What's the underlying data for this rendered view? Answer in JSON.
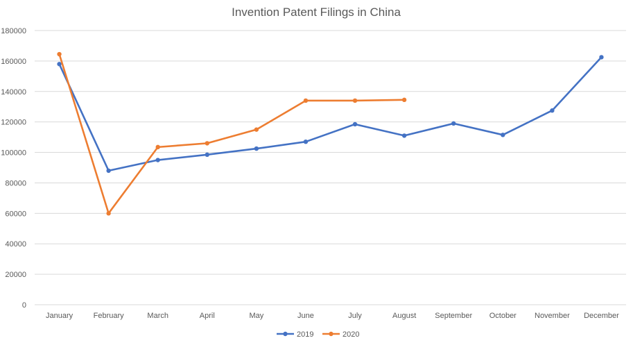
{
  "chart_data": {
    "type": "line",
    "title": "Invention Patent Filings in China",
    "xlabel": "",
    "ylabel": "",
    "categories": [
      "January",
      "February",
      "March",
      "April",
      "May",
      "June",
      "July",
      "August",
      "September",
      "October",
      "November",
      "December"
    ],
    "ylim": [
      0,
      180000
    ],
    "yticks": [
      0,
      20000,
      40000,
      60000,
      80000,
      100000,
      120000,
      140000,
      160000,
      180000
    ],
    "ytick_labels": [
      "0",
      "20000",
      "40000",
      "60000",
      "80000",
      "100000",
      "120000",
      "140000",
      "160000",
      "180000"
    ],
    "grid": true,
    "legend_position": "bottom",
    "series": [
      {
        "name": "2019",
        "color": "#4472c4",
        "values": [
          158000,
          88000,
          95000,
          98500,
          102500,
          107000,
          118500,
          111000,
          119000,
          111500,
          127500,
          162500
        ]
      },
      {
        "name": "2020",
        "color": "#ed7d31",
        "values": [
          164500,
          60000,
          103500,
          106000,
          115000,
          134000,
          134000,
          134500,
          null,
          null,
          null,
          null
        ]
      }
    ]
  }
}
